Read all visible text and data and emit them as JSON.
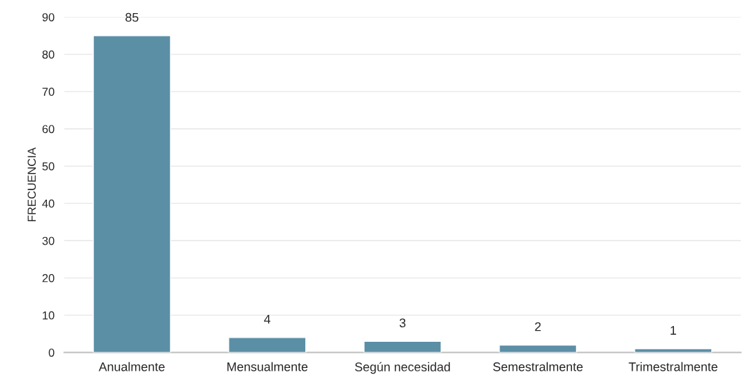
{
  "chart_data": {
    "type": "bar",
    "ylabel": "FRECUENCIA",
    "categories": [
      "Anualmente",
      "Mensualmente",
      "Según necesidad",
      "Semestralmente",
      "Trimestralmente"
    ],
    "values": [
      85,
      4,
      3,
      2,
      1
    ],
    "color": "#5b8fa6",
    "ylim": [
      0,
      90
    ],
    "yticks": [
      0,
      10,
      20,
      30,
      40,
      50,
      60,
      70,
      80,
      90
    ],
    "grid": "y",
    "data_labels": true
  }
}
